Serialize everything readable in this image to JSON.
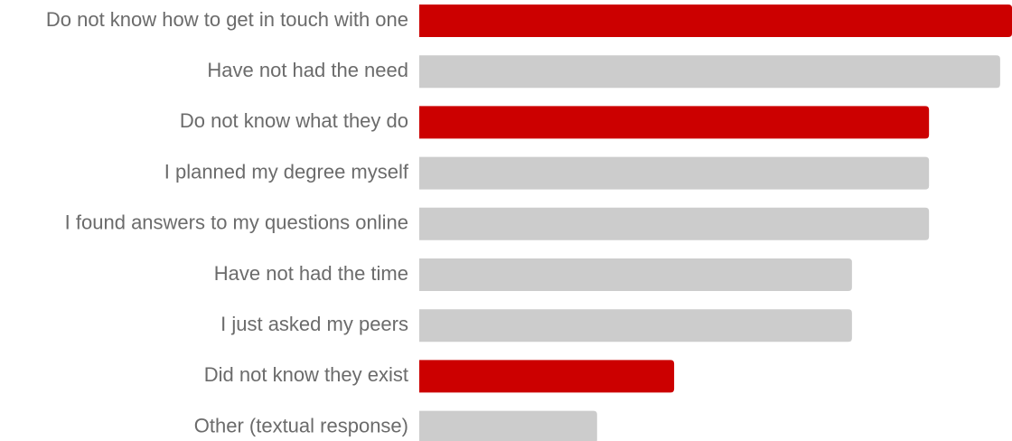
{
  "chart_data": {
    "type": "bar",
    "orientation": "horizontal",
    "categories": [
      "Do not know how to get in touch with one",
      "Have not had the need",
      "Do not know what they do",
      "I planned my degree myself",
      "I found answers to my questions online",
      "Have not had the time",
      "I just asked my peers",
      "Did not know they exist",
      "Other (textual response)"
    ],
    "values": [
      100,
      98,
      86,
      86,
      86,
      73,
      73,
      43,
      30
    ],
    "colors": [
      "#cc0000",
      "#cccccc",
      "#cc0000",
      "#cccccc",
      "#cccccc",
      "#cccccc",
      "#cccccc",
      "#cc0000",
      "#cccccc"
    ],
    "xlim": [
      0,
      100
    ]
  }
}
